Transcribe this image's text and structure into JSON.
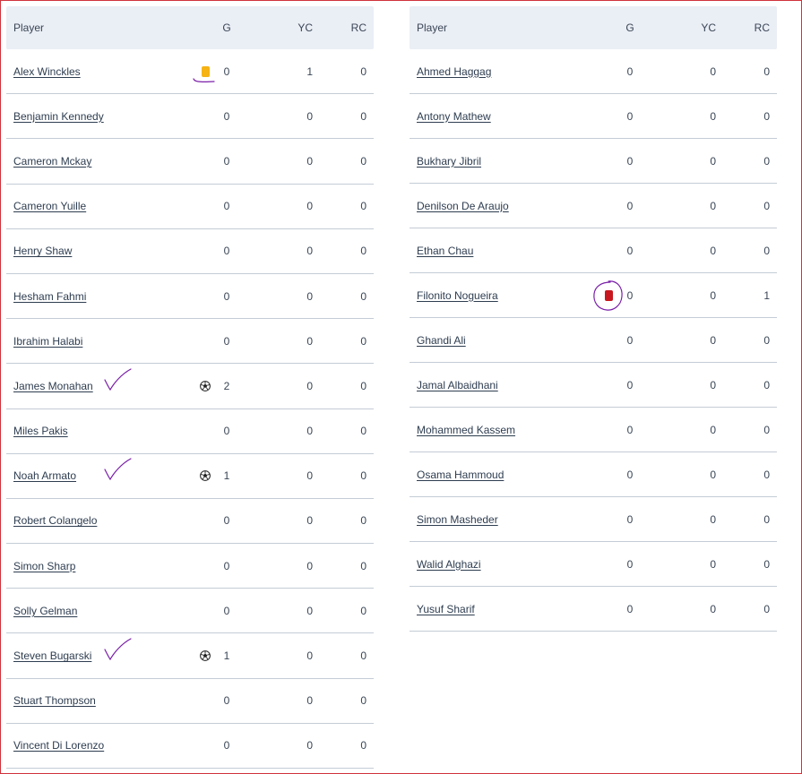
{
  "columns": {
    "player": "Player",
    "g": "G",
    "yc": "YC",
    "rc": "RC"
  },
  "colors": {
    "yellow_card": "#f5b316",
    "red_card": "#c8171e",
    "annotation": "#7a1fa8",
    "border": "#d0323c"
  },
  "left_table": {
    "rows": [
      {
        "name": "Alex Winckles",
        "g": "0",
        "yc": "1",
        "rc": "0",
        "icon": "yellow-card-icon",
        "annotation": "underline"
      },
      {
        "name": "Benjamin Kennedy",
        "g": "0",
        "yc": "0",
        "rc": "0"
      },
      {
        "name": "Cameron Mckay",
        "g": "0",
        "yc": "0",
        "rc": "0"
      },
      {
        "name": "Cameron Yuille",
        "g": "0",
        "yc": "0",
        "rc": "0"
      },
      {
        "name": "Henry Shaw",
        "g": "0",
        "yc": "0",
        "rc": "0"
      },
      {
        "name": "Hesham Fahmi",
        "g": "0",
        "yc": "0",
        "rc": "0"
      },
      {
        "name": "Ibrahim Halabi",
        "g": "0",
        "yc": "0",
        "rc": "0"
      },
      {
        "name": "James Monahan",
        "g": "2",
        "yc": "0",
        "rc": "0",
        "icon": "soccer-ball-icon",
        "annotation": "checkmark"
      },
      {
        "name": "Miles Pakis",
        "g": "0",
        "yc": "0",
        "rc": "0"
      },
      {
        "name": "Noah Armato",
        "g": "1",
        "yc": "0",
        "rc": "0",
        "icon": "soccer-ball-icon",
        "annotation": "checkmark"
      },
      {
        "name": "Robert Colangelo",
        "g": "0",
        "yc": "0",
        "rc": "0"
      },
      {
        "name": "Simon Sharp",
        "g": "0",
        "yc": "0",
        "rc": "0"
      },
      {
        "name": "Solly Gelman",
        "g": "0",
        "yc": "0",
        "rc": "0"
      },
      {
        "name": "Steven Bugarski",
        "g": "1",
        "yc": "0",
        "rc": "0",
        "icon": "soccer-ball-icon",
        "annotation": "checkmark"
      },
      {
        "name": "Stuart Thompson",
        "g": "0",
        "yc": "0",
        "rc": "0"
      },
      {
        "name": "Vincent Di Lorenzo",
        "g": "0",
        "yc": "0",
        "rc": "0"
      }
    ]
  },
  "right_table": {
    "rows": [
      {
        "name": "Ahmed Haggag",
        "g": "0",
        "yc": "0",
        "rc": "0"
      },
      {
        "name": "Antony Mathew",
        "g": "0",
        "yc": "0",
        "rc": "0"
      },
      {
        "name": "Bukhary Jibril",
        "g": "0",
        "yc": "0",
        "rc": "0"
      },
      {
        "name": "Denilson De Araujo",
        "g": "0",
        "yc": "0",
        "rc": "0"
      },
      {
        "name": "Ethan Chau",
        "g": "0",
        "yc": "0",
        "rc": "0"
      },
      {
        "name": "Filonito Nogueira",
        "g": "0",
        "yc": "0",
        "rc": "1",
        "icon": "red-card-icon",
        "annotation": "circle"
      },
      {
        "name": "Ghandi Ali",
        "g": "0",
        "yc": "0",
        "rc": "0"
      },
      {
        "name": "Jamal Albaidhani",
        "g": "0",
        "yc": "0",
        "rc": "0"
      },
      {
        "name": "Mohammed Kassem",
        "g": "0",
        "yc": "0",
        "rc": "0"
      },
      {
        "name": "Osama Hammoud",
        "g": "0",
        "yc": "0",
        "rc": "0"
      },
      {
        "name": "Simon Masheder",
        "g": "0",
        "yc": "0",
        "rc": "0"
      },
      {
        "name": "Walid Alghazi",
        "g": "0",
        "yc": "0",
        "rc": "0"
      },
      {
        "name": "Yusuf Sharif",
        "g": "0",
        "yc": "0",
        "rc": "0"
      }
    ]
  }
}
